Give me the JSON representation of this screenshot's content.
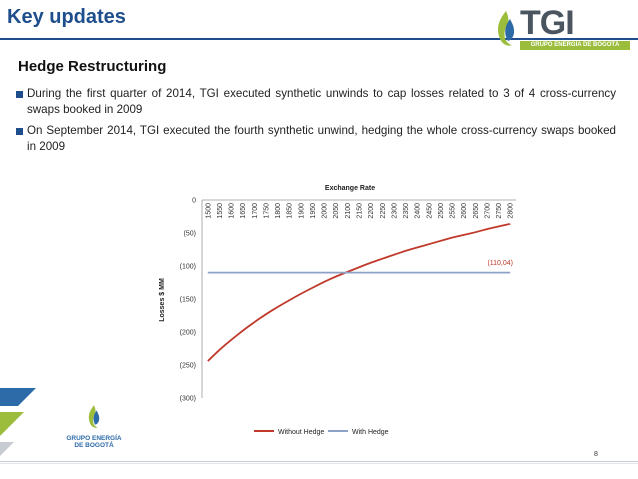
{
  "slide": {
    "title": "Key updates",
    "subtitle": "Hedge Restructuring",
    "page_number": "8",
    "bullets": [
      "During  the first quarter of 2014, TGI executed synthetic unwinds to cap losses related to 3 of 4 cross-currency swaps booked in 2009",
      "On September 2014, TGI executed the fourth synthetic unwind, hedging the whole cross-currency swaps booked in 2009"
    ]
  },
  "logo": {
    "wordmark": "TGI",
    "tagline": "GRUPO ENERGÍA DE BOGOTÁ",
    "footer_line1": "GRUPO ENERGÍA",
    "footer_line2": "DE BOGOTÁ"
  },
  "colors": {
    "accent": "#1f4e8c",
    "without_hedge": "#c0392b",
    "with_hedge": "#8ea1c6",
    "logo_green": "#9bbd3b",
    "logo_blue": "#2c6aa8"
  },
  "chart_data": {
    "type": "line",
    "title": "Exchange Rate",
    "xlabel": "",
    "ylabel": "Losses $ MM",
    "categories": [
      "1500",
      "1550",
      "1600",
      "1650",
      "1700",
      "1750",
      "1800",
      "1850",
      "1900",
      "1950",
      "2000",
      "2050",
      "2100",
      "2150",
      "2200",
      "2250",
      "2300",
      "2350",
      "2400",
      "2450",
      "2500",
      "2550",
      "2600",
      "2650",
      "2700",
      "2750",
      "2800"
    ],
    "ylim": [
      -300,
      0
    ],
    "yticks": [
      0,
      -50,
      -100,
      -150,
      -200,
      -250,
      -300
    ],
    "ytick_labels": [
      "0",
      "(50)",
      "(100)",
      "(150)",
      "(200)",
      "(250)",
      "(300)"
    ],
    "grid": false,
    "legend": "bottom",
    "series": [
      {
        "name": "Without Hedge",
        "values": [
          -244,
          -227,
          -212,
          -198,
          -185,
          -173,
          -162,
          -152,
          -142,
          -133,
          -124,
          -116,
          -109,
          -102,
          -95,
          -89,
          -83,
          -77,
          -72,
          -67,
          -62,
          -57,
          -53,
          -49,
          -44,
          -40,
          -36
        ]
      },
      {
        "name": "With Hedge",
        "values": [
          -110.04,
          -110.04,
          -110.04,
          -110.04,
          -110.04,
          -110.04,
          -110.04,
          -110.04,
          -110.04,
          -110.04,
          -110.04,
          -110.04,
          -110.04,
          -110.04,
          -110.04,
          -110.04,
          -110.04,
          -110.04,
          -110.04,
          -110.04,
          -110.04,
          -110.04,
          -110.04,
          -110.04,
          -110.04,
          -110.04,
          -110.04
        ]
      }
    ],
    "annotation": "(110,04)"
  }
}
